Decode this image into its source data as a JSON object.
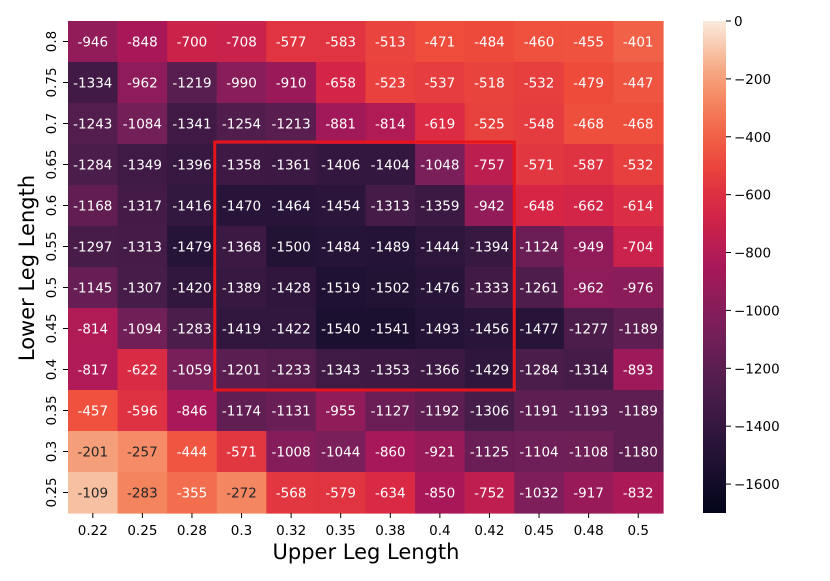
{
  "chart_data": {
    "type": "heatmap",
    "xlabel": "Upper Leg Length",
    "ylabel": "Lower Leg Length",
    "x_categories": [
      "0.22",
      "0.25",
      "0.28",
      "0.3",
      "0.32",
      "0.35",
      "0.38",
      "0.4",
      "0.42",
      "0.45",
      "0.48",
      "0.5"
    ],
    "y_categories": [
      "0.8",
      "0.75",
      "0.7",
      "0.65",
      "0.6",
      "0.55",
      "0.5",
      "0.45",
      "0.4",
      "0.35",
      "0.3",
      "0.25"
    ],
    "values": [
      [
        -946,
        -848,
        -700,
        -708,
        -577,
        -583,
        -513,
        -471,
        -484,
        -460,
        -455,
        -401
      ],
      [
        -1334,
        -962,
        -1219,
        -990,
        -910,
        -658,
        -523,
        -537,
        -518,
        -532,
        -479,
        -447
      ],
      [
        -1243,
        -1084,
        -1341,
        -1254,
        -1213,
        -881,
        -814,
        -619,
        -525,
        -548,
        -468,
        -468
      ],
      [
        -1284,
        -1349,
        -1396,
        -1358,
        -1361,
        -1406,
        -1404,
        -1048,
        -757,
        -571,
        -587,
        -532
      ],
      [
        -1168,
        -1317,
        -1416,
        -1470,
        -1464,
        -1454,
        -1313,
        -1359,
        -942,
        -648,
        -662,
        -614
      ],
      [
        -1297,
        -1313,
        -1479,
        -1368,
        -1500,
        -1484,
        -1489,
        -1444,
        -1394,
        -1124,
        -949,
        -704
      ],
      [
        -1145,
        -1307,
        -1420,
        -1389,
        -1428,
        -1519,
        -1502,
        -1476,
        -1333,
        -1261,
        -962,
        -976
      ],
      [
        -814,
        -1094,
        -1283,
        -1419,
        -1422,
        -1540,
        -1541,
        -1493,
        -1456,
        -1477,
        -1277,
        -1189
      ],
      [
        -817,
        -622,
        -1059,
        -1201,
        -1233,
        -1343,
        -1353,
        -1366,
        -1429,
        -1284,
        -1314,
        -893
      ],
      [
        -457,
        -596,
        -846,
        -1174,
        -1131,
        -955,
        -1127,
        -1192,
        -1306,
        -1191,
        -1193,
        -1189
      ],
      [
        -201,
        -257,
        -444,
        -571,
        -1008,
        -1044,
        -860,
        -921,
        -1125,
        -1104,
        -1108,
        -1180
      ],
      [
        -109,
        -283,
        -355,
        -272,
        -568,
        -579,
        -634,
        -850,
        -752,
        -1032,
        -917,
        -832
      ]
    ],
    "colorbar": {
      "min": -1700,
      "max": 0,
      "ticks": [
        0,
        -200,
        -400,
        -600,
        -800,
        -1000,
        -1200,
        -1400,
        -1600
      ],
      "tick_labels": [
        "0",
        "−200",
        "−400",
        "−600",
        "−800",
        "−1000",
        "−1200",
        "−1400",
        "−1600"
      ],
      "colormap": "rocket"
    },
    "highlight": {
      "color": "#e8141c",
      "col_start": 3,
      "col_end": 8,
      "row_start": 3,
      "row_end": 8
    }
  }
}
